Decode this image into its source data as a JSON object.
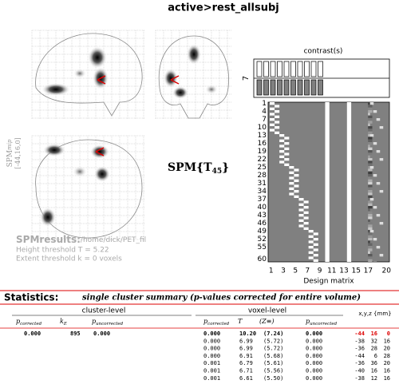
{
  "header": {
    "title": "active>rest_allsubj"
  },
  "mip": {
    "label": "SPM",
    "sub": "mip",
    "coords": "[-44,16,0]"
  },
  "statistic": {
    "label": "SPM{T",
    "df": "45",
    "close": "}"
  },
  "contrast": {
    "title": "contrast(s)",
    "number": "7"
  },
  "design_matrix": {
    "title": "Design matrix",
    "row_labels": [
      "1",
      "4",
      "7",
      "10",
      "13",
      "16",
      "19",
      "22",
      "25",
      "28",
      "31",
      "34",
      "37",
      "40",
      "43",
      "46",
      "49",
      "52",
      "55",
      "60"
    ],
    "column_labels": [
      "1",
      "3",
      "5",
      "7",
      "9",
      "11",
      "13",
      "15",
      "17",
      "20"
    ]
  },
  "results": {
    "title": "SPMresults:",
    "path": "/home/dick/PET_fil",
    "height_threshold": "Height threshold T = 5.22",
    "extent_threshold": "Extent threshold k = 0 voxels"
  },
  "statistics": {
    "title": "Statistics:",
    "subtitle": "single cluster summary (p-values corrected for entire volume)",
    "groups": [
      "cluster-level",
      "voxel-level"
    ],
    "coords_header": "x,y,z {mm}",
    "cluster_columns": [
      {
        "main": "p",
        "sub": "corrected"
      },
      {
        "main": "k",
        "sub": "E"
      },
      {
        "main": "p",
        "sub": "uncorrected"
      }
    ],
    "voxel_columns": [
      {
        "main": "p",
        "sub": "corrected"
      },
      {
        "main": "T"
      },
      {
        "main": "(Z≡)"
      },
      {
        "main": "p",
        "sub": "uncorrected"
      }
    ],
    "cluster_rows": [
      [
        "0.000",
        "895",
        "0.000"
      ]
    ],
    "voxel_rows": [
      [
        "0.000",
        "10.20",
        "(7.24)",
        "0.000",
        "-44",
        "16",
        "0"
      ],
      [
        "0.000",
        "6.99",
        "(5.72)",
        "0.000",
        "-38",
        "32",
        "16"
      ],
      [
        "0.000",
        "6.99",
        "(5.72)",
        "0.000",
        "-36",
        "28",
        "20"
      ],
      [
        "0.000",
        "6.91",
        "(5.68)",
        "0.000",
        "-44",
        "6",
        "28"
      ],
      [
        "0.001",
        "6.79",
        "(5.61)",
        "0.000",
        "-36",
        "36",
        "20"
      ],
      [
        "0.001",
        "6.71",
        "(5.56)",
        "0.000",
        "-40",
        "16",
        "16"
      ],
      [
        "0.001",
        "6.61",
        "(5.50)",
        "0.000",
        "-38",
        "12",
        "16"
      ]
    ]
  }
}
